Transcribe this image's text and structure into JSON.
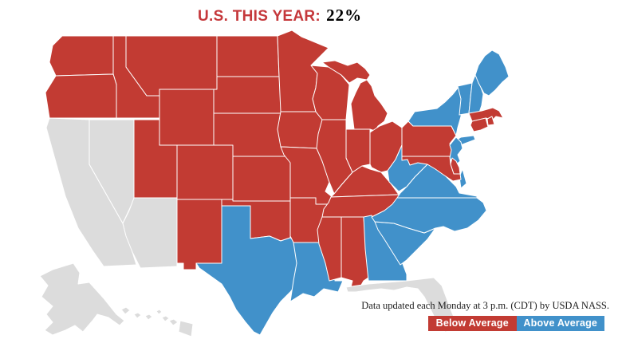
{
  "title": {
    "label": "U.S. THIS YEAR:",
    "value": "22%"
  },
  "footnote": "Data updated each Monday at 3 p.m. (CDT) by USDA NASS.",
  "legend": {
    "below": {
      "label": "Below Average",
      "color": "#c23b33"
    },
    "above": {
      "label": "Above Average",
      "color": "#4191ca"
    }
  },
  "colors": {
    "below_average": "#c23b33",
    "above_average": "#4191ca",
    "no_data": "#dcdcdc",
    "state_border": "#ffffff",
    "title_accent": "#c5383b",
    "background": "#ffffff"
  },
  "chart_data": {
    "type": "choropleth_map",
    "title": "U.S. THIS YEAR: 22%",
    "us_this_year_pct": 22,
    "legend_entries": [
      "Below Average",
      "Above Average"
    ],
    "legend_position": "bottom-right",
    "below_average_states": [
      "WA",
      "OR",
      "ID",
      "MT",
      "WY",
      "UT",
      "CO",
      "NM",
      "ND",
      "SD",
      "NE",
      "KS",
      "OK",
      "MN",
      "IA",
      "MO",
      "AR",
      "WI",
      "IL",
      "MI",
      "IN",
      "OH",
      "KY",
      "TN",
      "MS",
      "AL",
      "PA",
      "MD",
      "DE",
      "MA",
      "CT",
      "RI"
    ],
    "above_average_states": [
      "TX",
      "LA",
      "GA",
      "SC",
      "NC",
      "VA",
      "WV",
      "NJ",
      "NY",
      "VT",
      "NH",
      "ME"
    ],
    "no_data_states": [
      "CA",
      "NV",
      "AZ",
      "FL",
      "AK",
      "HI"
    ],
    "states": {
      "WA": "below_average",
      "OR": "below_average",
      "ID": "below_average",
      "MT": "below_average",
      "WY": "below_average",
      "UT": "below_average",
      "CO": "below_average",
      "NM": "below_average",
      "ND": "below_average",
      "SD": "below_average",
      "NE": "below_average",
      "KS": "below_average",
      "OK": "below_average",
      "MN": "below_average",
      "IA": "below_average",
      "MO": "below_average",
      "AR": "below_average",
      "WI": "below_average",
      "IL": "below_average",
      "MI": "below_average",
      "IN": "below_average",
      "OH": "below_average",
      "KY": "below_average",
      "TN": "below_average",
      "MS": "below_average",
      "AL": "below_average",
      "PA": "below_average",
      "MD": "below_average",
      "DE": "below_average",
      "MA": "below_average",
      "CT": "below_average",
      "RI": "below_average",
      "TX": "above_average",
      "LA": "above_average",
      "GA": "above_average",
      "SC": "above_average",
      "NC": "above_average",
      "VA": "above_average",
      "WV": "above_average",
      "NJ": "above_average",
      "NY": "above_average",
      "VT": "above_average",
      "NH": "above_average",
      "ME": "above_average",
      "CA": "no_data",
      "NV": "no_data",
      "AZ": "no_data",
      "FL": "no_data",
      "AK": "no_data",
      "HI": "no_data"
    }
  }
}
